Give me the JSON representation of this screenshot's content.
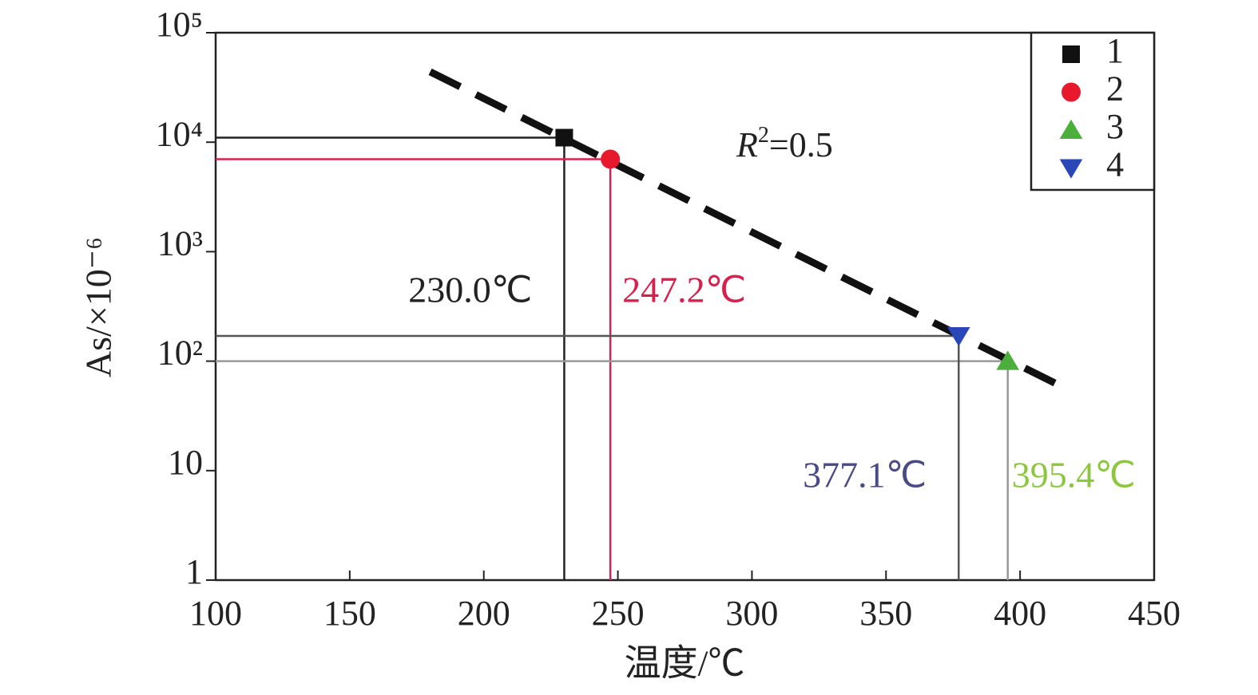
{
  "chart_data": {
    "type": "scatter",
    "xlabel": "温度/℃",
    "ylabel": "As/×10⁻⁶",
    "xlim": [
      100,
      450
    ],
    "xticks": [
      100,
      150,
      200,
      250,
      300,
      350,
      400,
      450
    ],
    "ylim": [
      1,
      100000
    ],
    "yscale": "log",
    "yticks": [
      1,
      10,
      {
        "value": 100,
        "label": "10²"
      },
      {
        "value": 1000,
        "label": "10³"
      },
      {
        "value": 10000,
        "label": "10⁴"
      },
      {
        "value": 100000,
        "label": "10⁵"
      }
    ],
    "legend": "upper right",
    "series": [
      {
        "name": "1",
        "color": "#111111",
        "marker": "square",
        "x": [
          230.0
        ],
        "values": [
          11000
        ],
        "x_label": "230.0℃",
        "label_color": "#222222",
        "guide_color": "#222222"
      },
      {
        "name": "2",
        "color": "#e8192c",
        "marker": "circle",
        "x": [
          247.2
        ],
        "values": [
          7000
        ],
        "x_label": "247.2℃",
        "label_color": "#d8204e",
        "guide_color": "#d8204e"
      },
      {
        "name": "3",
        "color": "#4caf3c",
        "marker": "triangle-up",
        "x": [
          395.4
        ],
        "values": [
          100
        ],
        "x_label": "395.4℃",
        "label_color": "#8dc63f",
        "guide_color": "#999999"
      },
      {
        "name": "4",
        "color": "#2a47b8",
        "marker": "triangle-down",
        "x": [
          377.1
        ],
        "values": [
          170
        ],
        "x_label": "377.1℃",
        "label_color": "#4a4a86",
        "guide_color": "#555555"
      }
    ],
    "fit_line": {
      "color": "#111111",
      "x": [
        180,
        413
      ],
      "values": [
        44000,
        63
      ]
    },
    "annotation": {
      "base": "R",
      "sup": "2",
      "rest": "=0.5"
    }
  }
}
